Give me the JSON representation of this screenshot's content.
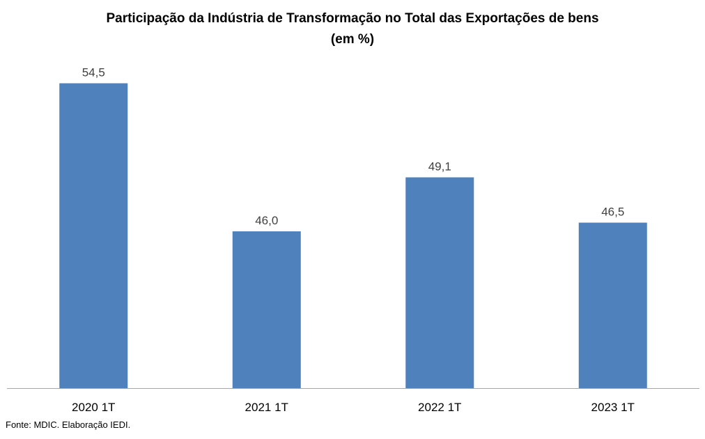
{
  "chart_data": {
    "type": "bar",
    "title": "Participação da Indústria de Transformação no Total das Exportações de bens",
    "subtitle": "(em %)",
    "categories": [
      "2020 1T",
      "2021 1T",
      "2022 1T",
      "2023 1T"
    ],
    "values": [
      54.5,
      46.0,
      49.1,
      46.5
    ],
    "data_labels": [
      "54,5",
      "46,0",
      "49,1",
      "46,5"
    ],
    "ylim": [
      37,
      55
    ],
    "grid": false,
    "legend": "none",
    "bar_color": "#4f81bd"
  },
  "source_note": "Fonte: MDIC. Elaboração IEDI."
}
